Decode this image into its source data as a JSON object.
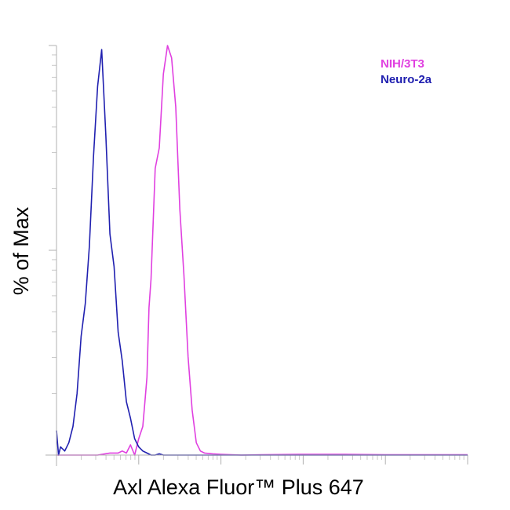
{
  "chart_data": {
    "type": "line",
    "title": "",
    "xlabel": "Axl Alexa Fluor™ Plus 647",
    "ylabel": "% of Max",
    "xlim": [
      0,
      1
    ],
    "ylim": [
      0,
      100
    ],
    "grid": false,
    "legend_position": "top-right",
    "series": [
      {
        "name": "NIH/3T3",
        "color": "#e040e0",
        "x": [
          0.0,
          0.05,
          0.08,
          0.1,
          0.13,
          0.14,
          0.15,
          0.16,
          0.17,
          0.18,
          0.19,
          0.2,
          0.21,
          0.215,
          0.22,
          0.225,
          0.23,
          0.24,
          0.25,
          0.26,
          0.27,
          0.28,
          0.29,
          0.3,
          0.31,
          0.32,
          0.33,
          0.34,
          0.35,
          0.36,
          0.38,
          0.4,
          0.45,
          0.5,
          0.6,
          0.7,
          0.8,
          0.9,
          1.0
        ],
        "y": [
          0,
          0,
          0,
          0,
          0.5,
          0.5,
          0.5,
          1,
          0.5,
          2.5,
          0,
          4,
          7,
          13,
          19,
          36,
          43,
          70,
          75,
          93,
          100,
          97,
          85,
          60,
          44,
          24,
          11,
          3,
          1,
          0.5,
          0.3,
          0.2,
          0,
          0.1,
          0.2,
          0.2,
          0.1,
          0.1,
          0.1
        ]
      },
      {
        "name": "Neuro-2a",
        "color": "#2020b0",
        "x": [
          0.0,
          0.005,
          0.01,
          0.02,
          0.03,
          0.04,
          0.05,
          0.06,
          0.07,
          0.08,
          0.09,
          0.1,
          0.11,
          0.12,
          0.13,
          0.14,
          0.15,
          0.16,
          0.17,
          0.18,
          0.19,
          0.2,
          0.21,
          0.22,
          0.23,
          0.24,
          0.25,
          0.26,
          0.28,
          0.3,
          0.4,
          0.5,
          0.6,
          0.7,
          0.8,
          0.9,
          1.0
        ],
        "y": [
          6,
          0,
          2,
          1,
          3,
          7,
          15,
          29,
          37,
          51,
          73,
          90,
          99,
          78,
          54,
          46,
          30,
          23,
          13,
          9,
          4,
          2,
          1,
          0.5,
          0,
          0,
          0.3,
          0,
          0,
          0,
          0,
          0,
          0,
          0,
          0,
          0,
          0
        ]
      }
    ]
  }
}
